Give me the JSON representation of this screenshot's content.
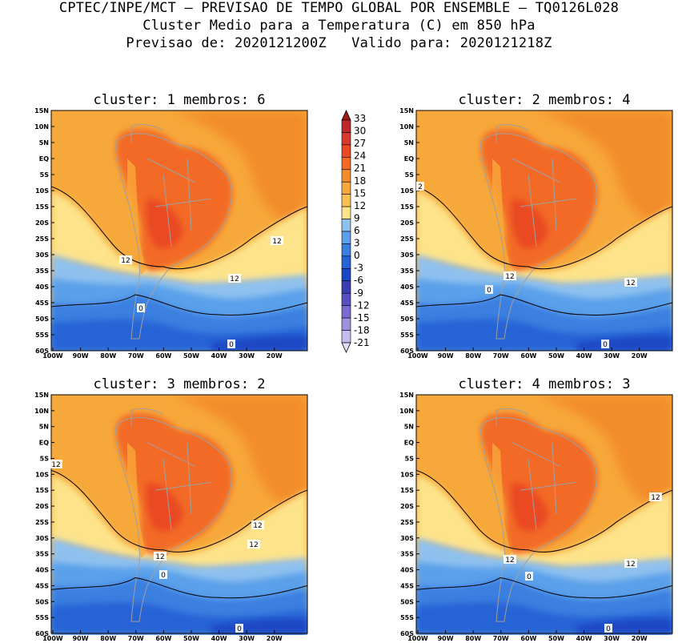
{
  "header": {
    "line1": "CPTEC/INPE/MCT – PREVISAO DE TEMPO GLOBAL POR ENSEMBLE – TQ0126L028",
    "line2": "Cluster Medio para a Temperatura (C) em 850 hPa",
    "line3": "Previsao de: 2020121200Z   Valido para: 2020121218Z"
  },
  "panels": [
    {
      "cluster": "1",
      "membros": "6",
      "title": "cluster: 1   membros: 6",
      "contour_labels": [
        "12",
        "12",
        "12",
        "0",
        "0"
      ]
    },
    {
      "cluster": "2",
      "membros": "4",
      "title": "cluster: 2   membros: 4",
      "contour_labels": [
        "2",
        "12",
        "12",
        "0",
        "0"
      ]
    },
    {
      "cluster": "3",
      "membros": "2",
      "title": "cluster: 3   membros: 2",
      "contour_labels": [
        "12",
        "12",
        "12",
        "12",
        "0",
        "0"
      ]
    },
    {
      "cluster": "4",
      "membros": "3",
      "title": "cluster: 4   membros: 3",
      "contour_labels": [
        "12",
        "12",
        "12",
        "0",
        "0"
      ]
    }
  ],
  "lat_labels": [
    "15N",
    "10N",
    "5N",
    "EQ",
    "5S",
    "10S",
    "15S",
    "20S",
    "25S",
    "30S",
    "35S",
    "40S",
    "45S",
    "50S",
    "55S",
    "60S"
  ],
  "lon_labels": [
    "100W",
    "90W",
    "80W",
    "70W",
    "60W",
    "50W",
    "40W",
    "30W",
    "20W"
  ],
  "colorbar": {
    "labels": [
      "33",
      "30",
      "27",
      "24",
      "21",
      "18",
      "15",
      "12",
      "9",
      "6",
      "3",
      "0",
      "-3",
      "-6",
      "-9",
      "-12",
      "-15",
      "-18",
      "-21"
    ],
    "colors": [
      "#9e1a1a",
      "#c0272d",
      "#d93a2e",
      "#ea4a23",
      "#f26a26",
      "#f38c2c",
      "#f7a83a",
      "#fbc04f",
      "#fde38a",
      "#8fc1ef",
      "#5aa0ea",
      "#3a7fe0",
      "#2563d6",
      "#1a47c4",
      "#3a3db2",
      "#5a4fc2",
      "#7a6bd2",
      "#9e92e0",
      "#c4bcef",
      "#e2ddf8"
    ]
  }
}
